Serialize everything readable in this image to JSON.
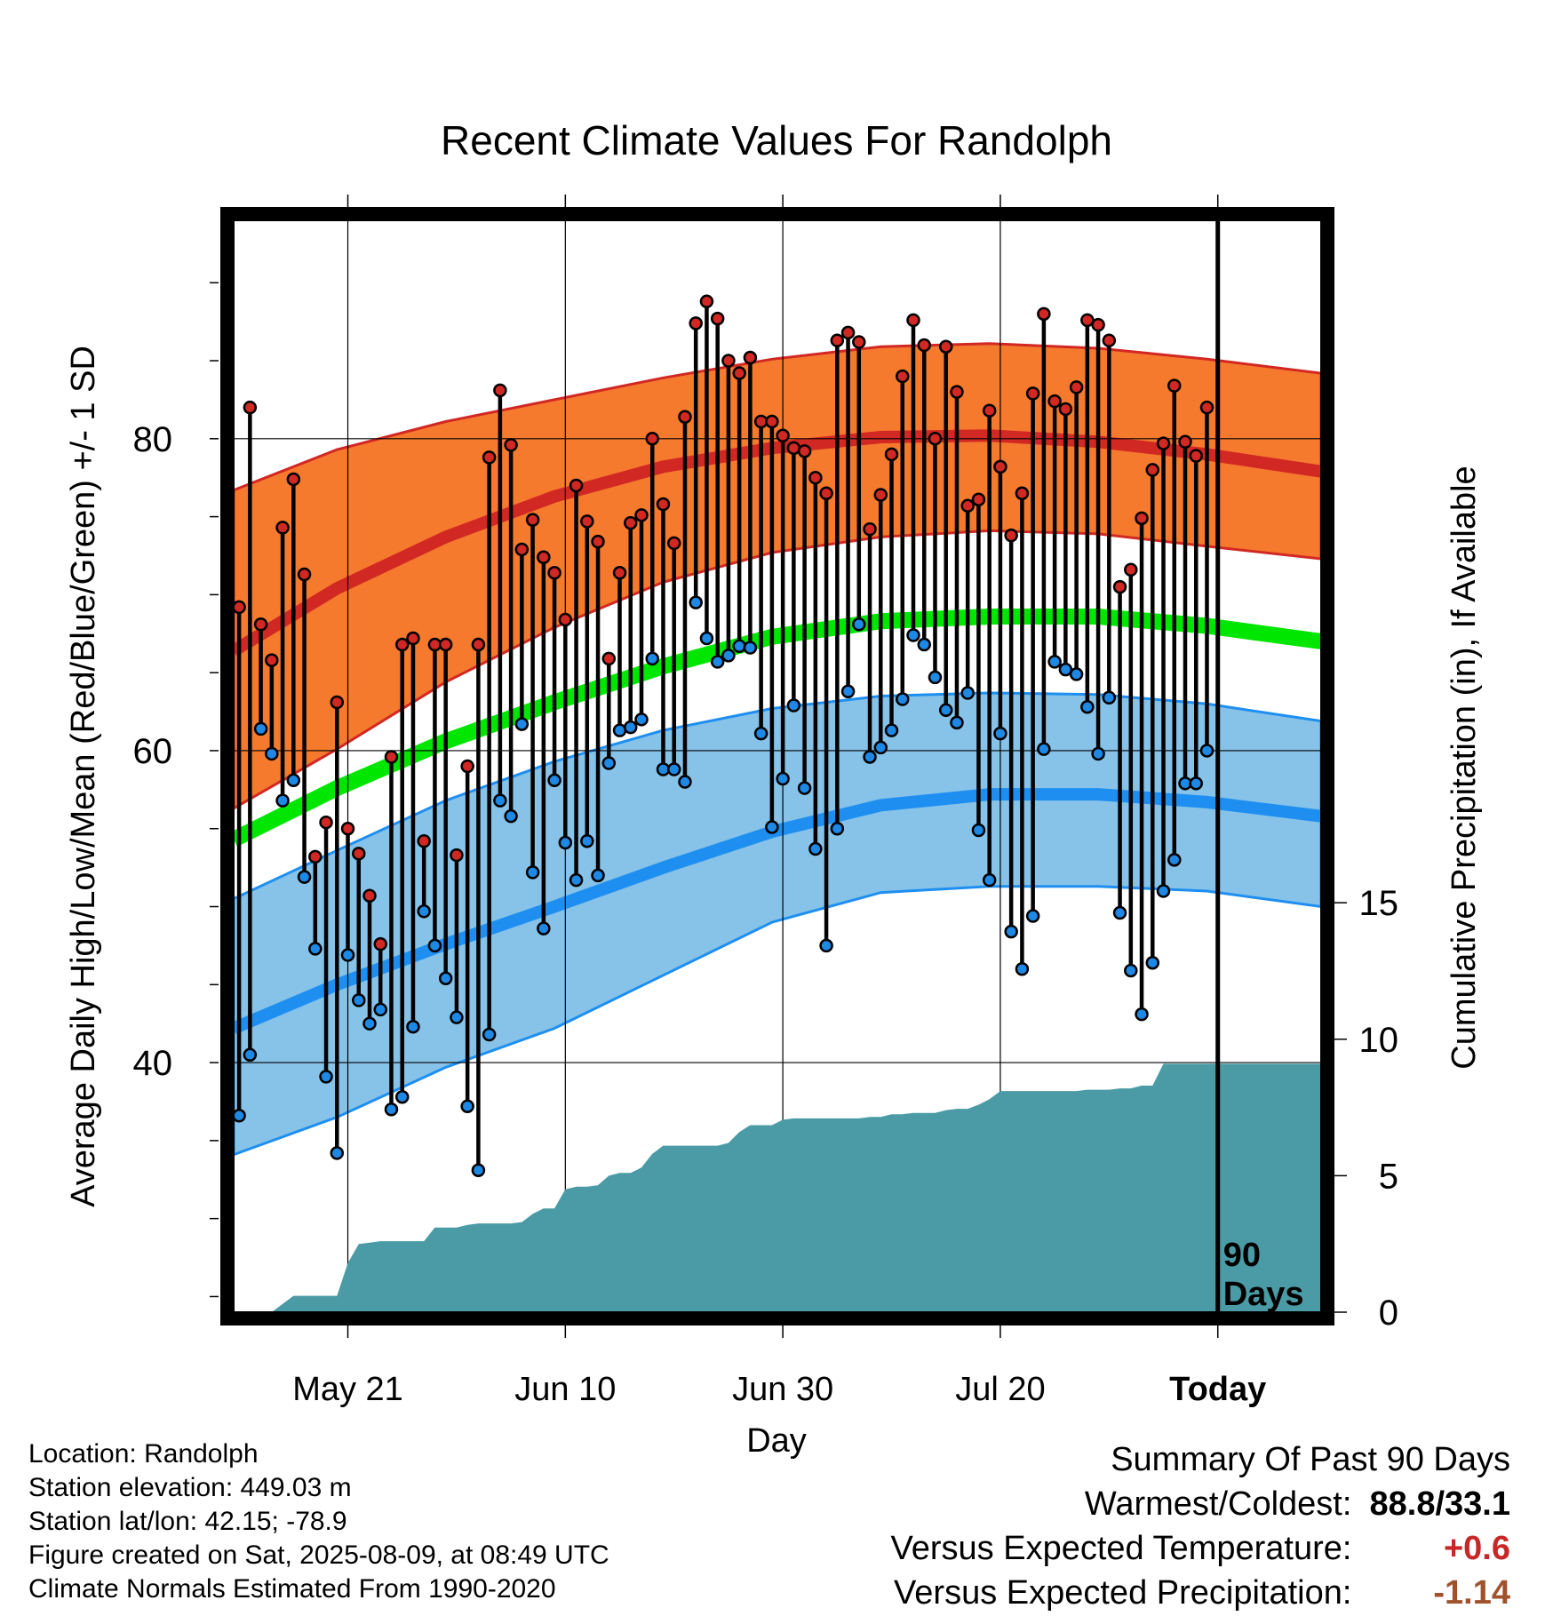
{
  "chart_data": {
    "type": "line",
    "title": "Recent Climate Values For Randolph",
    "xlabel": "Day",
    "ylabel": "Average Daily High/Low/Mean (Red/Blue/Green) +/- 1 SD",
    "y2label": "Cumulative Precipitation (in), If Available",
    "x_ticks": [
      {
        "label": "May 21",
        "day": 11
      },
      {
        "label": "Jun 10",
        "day": 31
      },
      {
        "label": "Jun 30",
        "day": 51
      },
      {
        "label": "Jul 20",
        "day": 71
      },
      {
        "label": "Today",
        "day": 91
      }
    ],
    "ylim": [
      24,
      94
    ],
    "y_ticks": [
      40,
      60,
      80
    ],
    "y2lim": [
      0,
      40
    ],
    "y2_ticks": [
      0,
      5,
      10,
      15
    ],
    "xlim": [
      0.5,
      100.5
    ],
    "today_day": 91,
    "today_label_lines": [
      "90",
      "Days"
    ],
    "normals": {
      "days": [
        0.5,
        10,
        20,
        30,
        40,
        50,
        60,
        70,
        80,
        90,
        100.5
      ],
      "high_mean": [
        66.4,
        70.4,
        73.7,
        76.3,
        78.2,
        79.4,
        80.1,
        80.2,
        79.8,
        79.0,
        77.9
      ],
      "high_upper": [
        76.7,
        79.3,
        81.1,
        82.5,
        83.9,
        85.1,
        85.9,
        86.1,
        85.8,
        85.1,
        84.2
      ],
      "high_lower": [
        56.3,
        60.1,
        64.4,
        67.9,
        70.8,
        72.7,
        73.7,
        74.1,
        73.9,
        73.1,
        72.3
      ],
      "avg_mean": [
        54.3,
        57.6,
        60.6,
        63.1,
        65.4,
        67.3,
        68.3,
        68.6,
        68.6,
        68.0,
        67.0
      ],
      "low_mean": [
        42.2,
        45.0,
        47.6,
        50.0,
        52.5,
        54.8,
        56.5,
        57.2,
        57.2,
        56.7,
        55.8
      ],
      "low_upper": [
        50.5,
        53.6,
        56.8,
        59.3,
        61.3,
        62.7,
        63.5,
        63.7,
        63.6,
        63.0,
        61.9
      ],
      "low_lower": [
        34.1,
        36.5,
        39.7,
        42.2,
        45.6,
        49.0,
        50.9,
        51.3,
        51.3,
        51.0,
        50.0
      ]
    },
    "observed": {
      "high": [
        69.2,
        82.0,
        68.1,
        65.8,
        74.3,
        77.4,
        71.3,
        53.2,
        55.4,
        63.1,
        55.0,
        53.4,
        50.7,
        47.6,
        59.6,
        66.8,
        67.2,
        54.2,
        66.8,
        66.8,
        53.3,
        59.0,
        66.8,
        78.8,
        83.1,
        79.6,
        72.9,
        74.8,
        72.4,
        71.4,
        68.4,
        77.0,
        74.7,
        73.4,
        65.9,
        71.4,
        74.6,
        75.1,
        80.0,
        75.8,
        73.3,
        81.4,
        87.4,
        88.8,
        87.7,
        85.0,
        84.2,
        85.2,
        81.1,
        81.1,
        80.2,
        79.4,
        79.2,
        77.5,
        76.5,
        86.3,
        86.8,
        86.2,
        74.2,
        76.4,
        79.0,
        84.0,
        87.6,
        86.0,
        80.0,
        85.9,
        83.0,
        75.7,
        76.1,
        81.8,
        78.2,
        73.8,
        76.5,
        82.9,
        88.0,
        82.4,
        81.9,
        83.3,
        87.6,
        87.3,
        86.3,
        70.5,
        71.6,
        74.9,
        78.0,
        79.7,
        83.4,
        79.8,
        78.9,
        82.0
      ],
      "low": [
        36.6,
        40.5,
        61.4,
        59.8,
        56.8,
        58.1,
        51.9,
        47.3,
        39.1,
        34.2,
        46.9,
        44.0,
        42.5,
        43.4,
        37.0,
        37.8,
        42.3,
        49.7,
        47.5,
        45.4,
        42.9,
        37.2,
        33.1,
        41.8,
        56.8,
        55.8,
        61.7,
        52.2,
        48.6,
        58.1,
        54.1,
        51.7,
        54.2,
        52.0,
        59.2,
        61.3,
        61.5,
        62.0,
        65.9,
        58.8,
        58.8,
        58.0,
        69.5,
        67.2,
        65.7,
        66.1,
        66.7,
        66.6,
        61.1,
        55.1,
        58.2,
        62.9,
        57.6,
        53.7,
        47.5,
        55.0,
        63.8,
        68.1,
        59.6,
        60.2,
        61.3,
        63.3,
        67.4,
        66.8,
        64.7,
        62.6,
        61.8,
        63.7,
        54.9,
        51.7,
        61.1,
        48.4,
        46.0,
        49.4,
        60.1,
        65.7,
        65.2,
        64.9,
        62.8,
        59.8,
        63.4,
        49.6,
        45.9,
        43.1,
        46.4,
        51.0,
        53.0,
        57.9,
        57.9,
        60.0
      ]
    },
    "precipitation": {
      "days": [
        0.5,
        4,
        5,
        6,
        7,
        8,
        9,
        10,
        11,
        12,
        13,
        14,
        15,
        16,
        17,
        18,
        19,
        20,
        21,
        22,
        23,
        24,
        25,
        26,
        27,
        28,
        29,
        30,
        31,
        32,
        33,
        34,
        35,
        36,
        37,
        38,
        39,
        40,
        41,
        42,
        43,
        44,
        45,
        46,
        47,
        48,
        49,
        50,
        51,
        52,
        53,
        54,
        55,
        56,
        57,
        58,
        59,
        60,
        61,
        62,
        63,
        64,
        65,
        66,
        67,
        68,
        69,
        70,
        71,
        72,
        73,
        74,
        75,
        76,
        77,
        78,
        79,
        80,
        81,
        82,
        83,
        84,
        85,
        86,
        87,
        88,
        89,
        90,
        91,
        100.5
      ],
      "cumulative": [
        0.0,
        0.0,
        0.3,
        0.6,
        0.6,
        0.6,
        0.6,
        0.6,
        1.8,
        2.5,
        2.55,
        2.6,
        2.6,
        2.6,
        2.6,
        2.6,
        3.1,
        3.1,
        3.1,
        3.2,
        3.25,
        3.25,
        3.25,
        3.25,
        3.3,
        3.6,
        3.8,
        3.8,
        4.5,
        4.6,
        4.6,
        4.65,
        5.0,
        5.1,
        5.1,
        5.3,
        5.8,
        6.1,
        6.1,
        6.1,
        6.1,
        6.1,
        6.1,
        6.2,
        6.6,
        6.85,
        6.85,
        6.85,
        7.05,
        7.1,
        7.1,
        7.1,
        7.1,
        7.1,
        7.1,
        7.1,
        7.15,
        7.15,
        7.25,
        7.25,
        7.3,
        7.3,
        7.3,
        7.4,
        7.45,
        7.45,
        7.6,
        7.8,
        8.1,
        8.1,
        8.1,
        8.1,
        8.1,
        8.1,
        8.1,
        8.1,
        8.15,
        8.15,
        8.15,
        8.2,
        8.2,
        8.3,
        8.3,
        9.1,
        9.1,
        9.1,
        9.1,
        9.1,
        9.1,
        9.1
      ]
    }
  },
  "colors": {
    "high_band": "#f57a2e",
    "high_line": "#d22823",
    "low_band": "#87c3e8",
    "low_line": "#1e8ff0",
    "mean_line": "#00e600",
    "precip_fill": "#4a9ba5",
    "high_dot": "#d22823",
    "low_dot": "#1e88e5"
  },
  "info": {
    "location": "Location: Randolph",
    "elevation": "Station elevation: 449.03 m",
    "latlon": "Station lat/lon: 42.15; -78.9",
    "created": "Figure created on Sat, 2025-08-09, at 08:49 UTC",
    "normals_note": "Climate Normals Estimated From 1990-2020"
  },
  "summary": {
    "title": "Summary Of Past 90 Days",
    "warm_cold_label": "Warmest/Coldest:",
    "warm_cold_value": "88.8/33.1",
    "temp_label": "Versus Expected Temperature:",
    "temp_value": "+0.6",
    "precip_label": "Versus Expected Precipitation:",
    "precip_value": "-1.14"
  }
}
